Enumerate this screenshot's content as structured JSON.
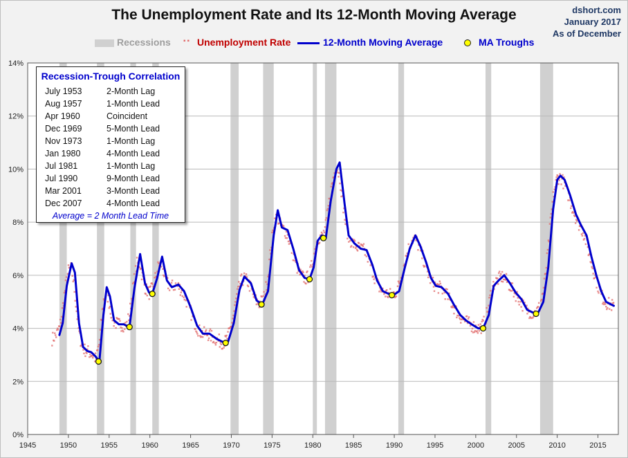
{
  "header": {
    "title": "The Unemployment Rate and Its 12-Month Moving Average",
    "source_lines": [
      "dshort.com",
      "January 2017",
      "As of December"
    ]
  },
  "legend": {
    "recessions": "Recessions",
    "unemployment": "Unemployment Rate",
    "moving_average": "12-Month Moving Average",
    "troughs": "MA Troughs"
  },
  "correlation_box": {
    "title": "Recession-Trough Correlation",
    "rows": [
      {
        "date": "July 1953",
        "lag": "2-Month Lag"
      },
      {
        "date": "Aug 1957",
        "lag": "1-Month Lead"
      },
      {
        "date": "Apr 1960",
        "lag": "Coincident"
      },
      {
        "date": "Dec 1969",
        "lag": "5-Month Lead"
      },
      {
        "date": "Nov 1973",
        "lag": "1-Month Lag"
      },
      {
        "date": "Jan 1980",
        "lag": "4-Month Lead"
      },
      {
        "date": "Jul 1981",
        "lag": "1-Month Lag"
      },
      {
        "date": "Jul 1990",
        "lag": "9-Month Lead"
      },
      {
        "date": "Mar 2001",
        "lag": "3-Month Lead"
      },
      {
        "date": "Dec 2007",
        "lag": "4-Month Lead"
      }
    ],
    "average": "Average = 2 Month Lead Time"
  },
  "colors": {
    "recession": "#d0d0d0",
    "unemployment": "#e06a6a",
    "moving_average": "#0000cc",
    "trough_fill": "#ffff00",
    "grid": "#b8b8b8",
    "plot_bg": "#ffffff"
  },
  "chart_data": {
    "type": "line",
    "title": "The Unemployment Rate and Its 12-Month Moving Average",
    "xlabel": "",
    "ylabel": "",
    "xlim": [
      1945,
      2017.5
    ],
    "ylim": [
      0,
      14
    ],
    "x_ticks": [
      1945,
      1950,
      1955,
      1960,
      1965,
      1970,
      1975,
      1980,
      1985,
      1990,
      1995,
      2000,
      2005,
      2010,
      2015
    ],
    "y_ticks": [
      0,
      2,
      4,
      6,
      8,
      10,
      12,
      14
    ],
    "y_tick_labels": [
      "0%",
      "2%",
      "4%",
      "6%",
      "8%",
      "10%",
      "12%",
      "14%"
    ],
    "recessions": [
      [
        1948.9,
        1949.8
      ],
      [
        1953.5,
        1954.4
      ],
      [
        1957.6,
        1958.3
      ],
      [
        1960.3,
        1961.1
      ],
      [
        1969.9,
        1970.9
      ],
      [
        1973.9,
        1975.2
      ],
      [
        1980.0,
        1980.5
      ],
      [
        1981.5,
        1982.9
      ],
      [
        1990.5,
        1991.2
      ],
      [
        2001.2,
        2001.9
      ],
      [
        2007.9,
        2009.5
      ]
    ],
    "series": [
      {
        "name": "12-Month Moving Average",
        "points": [
          [
            1948.9,
            3.75
          ],
          [
            1949.3,
            4.2
          ],
          [
            1949.8,
            5.6
          ],
          [
            1950.4,
            6.45
          ],
          [
            1950.8,
            6.1
          ],
          [
            1951.3,
            4.2
          ],
          [
            1951.8,
            3.3
          ],
          [
            1952.3,
            3.15
          ],
          [
            1952.8,
            3.1
          ],
          [
            1953.3,
            2.95
          ],
          [
            1953.8,
            2.75
          ],
          [
            1954.3,
            4.5
          ],
          [
            1954.7,
            5.55
          ],
          [
            1955.1,
            5.2
          ],
          [
            1955.6,
            4.3
          ],
          [
            1956.2,
            4.15
          ],
          [
            1956.8,
            4.15
          ],
          [
            1957.5,
            4.05
          ],
          [
            1958.1,
            5.5
          ],
          [
            1958.8,
            6.8
          ],
          [
            1959.4,
            5.7
          ],
          [
            1959.9,
            5.35
          ],
          [
            1960.3,
            5.3
          ],
          [
            1960.9,
            5.9
          ],
          [
            1961.5,
            6.7
          ],
          [
            1962.1,
            5.8
          ],
          [
            1962.7,
            5.55
          ],
          [
            1963.5,
            5.65
          ],
          [
            1964.2,
            5.4
          ],
          [
            1965.0,
            4.8
          ],
          [
            1965.8,
            4.1
          ],
          [
            1966.5,
            3.8
          ],
          [
            1967.3,
            3.8
          ],
          [
            1968.2,
            3.6
          ],
          [
            1969.2,
            3.45
          ],
          [
            1969.6,
            3.5
          ],
          [
            1970.3,
            4.2
          ],
          [
            1971.0,
            5.45
          ],
          [
            1971.6,
            5.95
          ],
          [
            1972.4,
            5.7
          ],
          [
            1973.1,
            5.05
          ],
          [
            1973.8,
            4.9
          ],
          [
            1974.5,
            5.4
          ],
          [
            1975.2,
            7.5
          ],
          [
            1975.7,
            8.45
          ],
          [
            1976.2,
            7.8
          ],
          [
            1976.9,
            7.7
          ],
          [
            1977.6,
            7.0
          ],
          [
            1978.3,
            6.2
          ],
          [
            1979.0,
            5.9
          ],
          [
            1979.6,
            5.85
          ],
          [
            1980.1,
            6.3
          ],
          [
            1980.6,
            7.3
          ],
          [
            1981.1,
            7.5
          ],
          [
            1981.6,
            7.4
          ],
          [
            1982.2,
            8.8
          ],
          [
            1982.9,
            10.0
          ],
          [
            1983.3,
            10.25
          ],
          [
            1983.9,
            8.7
          ],
          [
            1984.4,
            7.5
          ],
          [
            1985.1,
            7.2
          ],
          [
            1985.9,
            7.0
          ],
          [
            1986.6,
            6.95
          ],
          [
            1987.3,
            6.4
          ],
          [
            1987.9,
            5.8
          ],
          [
            1988.6,
            5.4
          ],
          [
            1989.3,
            5.3
          ],
          [
            1989.9,
            5.25
          ],
          [
            1990.6,
            5.4
          ],
          [
            1991.3,
            6.3
          ],
          [
            1991.9,
            7.0
          ],
          [
            1992.6,
            7.5
          ],
          [
            1993.2,
            7.1
          ],
          [
            1993.9,
            6.5
          ],
          [
            1994.5,
            5.9
          ],
          [
            1995.1,
            5.6
          ],
          [
            1995.8,
            5.55
          ],
          [
            1996.6,
            5.3
          ],
          [
            1997.3,
            4.9
          ],
          [
            1998.1,
            4.5
          ],
          [
            1998.8,
            4.3
          ],
          [
            1999.5,
            4.15
          ],
          [
            2000.3,
            4.0
          ],
          [
            2000.9,
            4.0
          ],
          [
            2001.6,
            4.5
          ],
          [
            2002.2,
            5.6
          ],
          [
            2002.8,
            5.8
          ],
          [
            2003.5,
            6.0
          ],
          [
            2004.2,
            5.7
          ],
          [
            2004.9,
            5.35
          ],
          [
            2005.6,
            5.1
          ],
          [
            2006.3,
            4.7
          ],
          [
            2007.0,
            4.6
          ],
          [
            2007.6,
            4.55
          ],
          [
            2008.3,
            5.0
          ],
          [
            2008.9,
            6.3
          ],
          [
            2009.5,
            8.5
          ],
          [
            2010.0,
            9.6
          ],
          [
            2010.4,
            9.75
          ],
          [
            2010.9,
            9.6
          ],
          [
            2011.6,
            9.0
          ],
          [
            2012.3,
            8.3
          ],
          [
            2012.9,
            7.9
          ],
          [
            2013.6,
            7.5
          ],
          [
            2014.2,
            6.7
          ],
          [
            2014.8,
            6.0
          ],
          [
            2015.4,
            5.4
          ],
          [
            2016.0,
            5.0
          ],
          [
            2016.6,
            4.9
          ],
          [
            2016.95,
            4.85
          ]
        ]
      },
      {
        "name": "Unemployment Rate",
        "noise_amplitude": 0.25
      }
    ],
    "troughs": [
      [
        1953.7,
        2.75
      ],
      [
        1957.5,
        4.05
      ],
      [
        1960.3,
        5.3
      ],
      [
        1969.3,
        3.45
      ],
      [
        1973.7,
        4.9
      ],
      [
        1979.6,
        5.85
      ],
      [
        1981.3,
        7.4
      ],
      [
        1989.7,
        5.25
      ],
      [
        2000.9,
        4.0
      ],
      [
        2007.4,
        4.55
      ]
    ]
  }
}
